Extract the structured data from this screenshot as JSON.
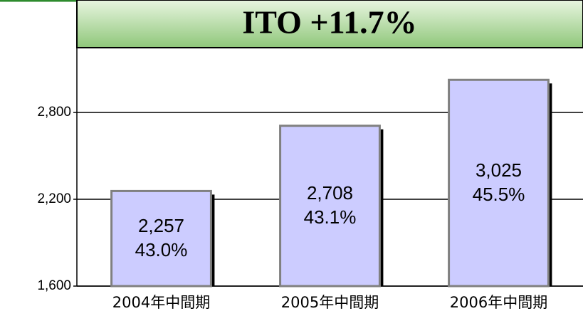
{
  "chart_data": {
    "type": "bar",
    "title": "ITO   +11.7%",
    "categories": [
      "2004年中間期",
      "2005年中間期",
      "2006年中間期"
    ],
    "values": [
      2257,
      2708,
      3025
    ],
    "value_labels": [
      "2,257",
      "2,708",
      "3,025"
    ],
    "shares": {
      "values": [
        43.0,
        43.1,
        45.5
      ],
      "labels": [
        "43.0%",
        "43.1%",
        "45.5%"
      ]
    },
    "color": "#ccccff",
    "ylim": [
      1600,
      3400
    ],
    "yticks": [
      {
        "value": 1600,
        "label": "1,600"
      },
      {
        "value": 2200,
        "label": "2,200"
      },
      {
        "value": 2800,
        "label": "2,800"
      }
    ],
    "grid": true
  }
}
